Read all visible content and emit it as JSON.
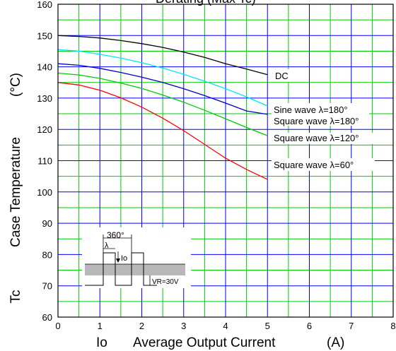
{
  "chart_data": {
    "type": "line",
    "title": "Derating (Max Tc)",
    "ylabel_prefix": "Tc",
    "ylabel": "Case Temperature",
    "ylabel_unit": "(°C)",
    "xlabel_prefix": "Io",
    "xlabel": "Average Output Current",
    "xlabel_unit": "(A)",
    "xlim": [
      0,
      8
    ],
    "ylim": [
      60,
      160
    ],
    "xticks": [
      0,
      1,
      2,
      3,
      4,
      5,
      6,
      7,
      8
    ],
    "yticks": [
      60,
      70,
      80,
      90,
      100,
      110,
      120,
      130,
      140,
      150,
      160
    ],
    "grid": {
      "major_color": "#0000ff",
      "minor_color": "#00cc00",
      "minor_step_x": 0.5,
      "minor_step_y": 5
    },
    "series": [
      {
        "name": "DC",
        "color": "#000000",
        "x": [
          0,
          0.5,
          1,
          1.5,
          2,
          2.5,
          3,
          3.5,
          4,
          4.5,
          5
        ],
        "y": [
          150,
          149.7,
          149.2,
          148.4,
          147.4,
          146.2,
          144.7,
          143.0,
          141.0,
          139.3,
          137.5
        ]
      },
      {
        "name": "Sine wave  λ=180°",
        "color": "#00e5ff",
        "x": [
          0,
          0.5,
          1,
          1.5,
          2,
          2.5,
          3,
          3.5,
          4,
          4.5,
          5
        ],
        "y": [
          145.5,
          145.0,
          144.0,
          142.8,
          141.3,
          139.6,
          137.6,
          135.4,
          133.0,
          130.4,
          127.5
        ]
      },
      {
        "name": "Square wave  λ=180°",
        "color": "#0000cc",
        "x": [
          0,
          0.5,
          1,
          1.5,
          2,
          2.5,
          3,
          3.5,
          4,
          4.5,
          5
        ],
        "y": [
          141,
          140.5,
          139.5,
          138.2,
          136.7,
          135.0,
          133.0,
          130.8,
          128.4,
          125.9,
          124.8
        ]
      },
      {
        "name": "Square wave  λ=120°",
        "color": "#00cc00",
        "x": [
          0,
          0.5,
          1,
          1.5,
          2,
          2.5,
          3,
          3.5,
          4,
          4.5,
          5
        ],
        "y": [
          138,
          137.4,
          136.3,
          134.8,
          133.1,
          131.0,
          128.7,
          126.1,
          123.4,
          120.6,
          118
        ]
      },
      {
        "name": "Square wave  λ=60°",
        "color": "#ff0000",
        "x": [
          0,
          0.5,
          1,
          1.5,
          2,
          2.5,
          3,
          3.5,
          4,
          4.5,
          5
        ],
        "y": [
          135,
          134.2,
          132.5,
          130.1,
          127.1,
          123.6,
          119.6,
          115.2,
          110.8,
          107.2,
          104
        ]
      }
    ],
    "labels": {
      "dc": "DC",
      "sine180": "Sine wave  λ=180°",
      "sq180": "Square wave  λ=180°",
      "sq120": "Square wave  λ=120°",
      "sq60": "Square wave  λ=60°"
    },
    "inset": {
      "period_label": "360°",
      "lambda_label": "λ",
      "io_label": "Io",
      "vr_label": "VR=30V"
    }
  }
}
